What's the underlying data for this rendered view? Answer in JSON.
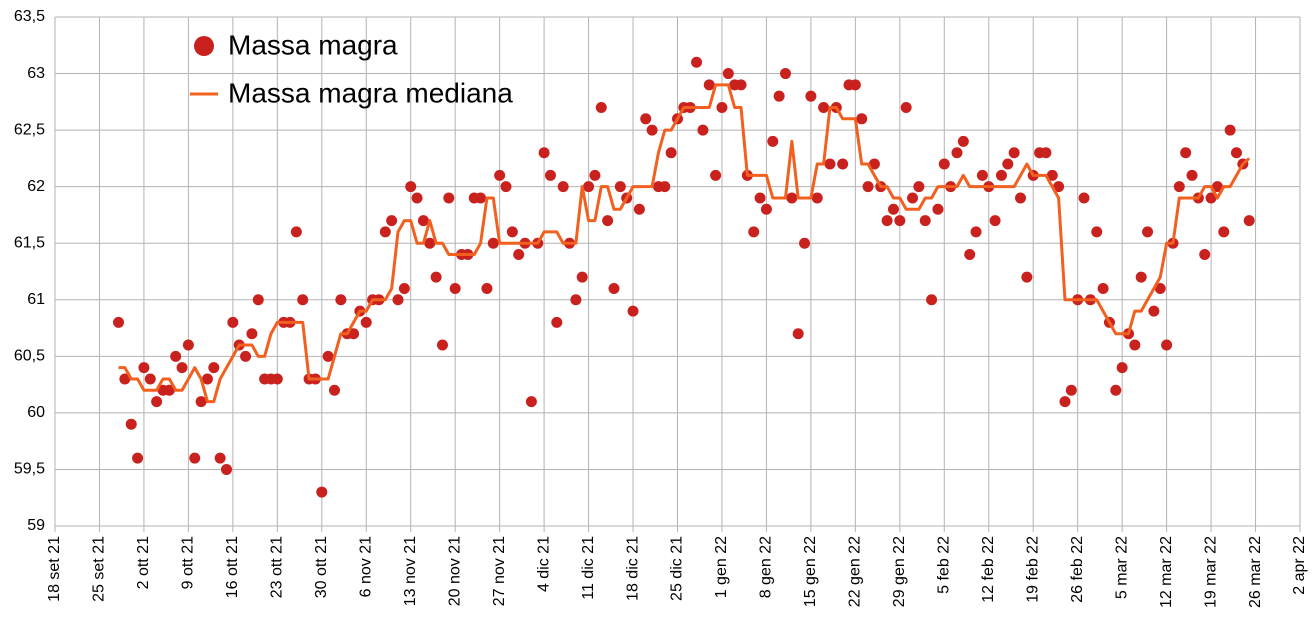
{
  "chart_data": {
    "type": "scatter",
    "x": [
      "2021-09-28",
      "2021-09-29",
      "2021-09-30",
      "2021-10-01",
      "2021-10-02",
      "2021-10-03",
      "2021-10-04",
      "2021-10-05",
      "2021-10-06",
      "2021-10-07",
      "2021-10-08",
      "2021-10-09",
      "2021-10-10",
      "2021-10-11",
      "2021-10-12",
      "2021-10-13",
      "2021-10-14",
      "2021-10-15",
      "2021-10-16",
      "2021-10-17",
      "2021-10-18",
      "2021-10-19",
      "2021-10-20",
      "2021-10-21",
      "2021-10-22",
      "2021-10-23",
      "2021-10-24",
      "2021-10-25",
      "2021-10-26",
      "2021-10-27",
      "2021-10-28",
      "2021-10-29",
      "2021-10-30",
      "2021-10-31",
      "2021-11-01",
      "2021-11-02",
      "2021-11-03",
      "2021-11-04",
      "2021-11-05",
      "2021-11-06",
      "2021-11-07",
      "2021-11-08",
      "2021-11-09",
      "2021-11-10",
      "2021-11-11",
      "2021-11-12",
      "2021-11-13",
      "2021-11-14",
      "2021-11-15",
      "2021-11-16",
      "2021-11-17",
      "2021-11-18",
      "2021-11-19",
      "2021-11-20",
      "2021-11-21",
      "2021-11-22",
      "2021-11-23",
      "2021-11-24",
      "2021-11-25",
      "2021-11-26",
      "2021-11-27",
      "2021-11-28",
      "2021-11-29",
      "2021-11-30",
      "2021-12-01",
      "2021-12-02",
      "2021-12-03",
      "2021-12-04",
      "2021-12-05",
      "2021-12-06",
      "2021-12-07",
      "2021-12-08",
      "2021-12-09",
      "2021-12-10",
      "2021-12-11",
      "2021-12-12",
      "2021-12-13",
      "2021-12-14",
      "2021-12-15",
      "2021-12-16",
      "2021-12-17",
      "2021-12-18",
      "2021-12-19",
      "2021-12-20",
      "2021-12-21",
      "2021-12-22",
      "2021-12-23",
      "2021-12-24",
      "2021-12-25",
      "2021-12-26",
      "2021-12-27",
      "2021-12-28",
      "2021-12-29",
      "2021-12-30",
      "2021-12-31",
      "2022-01-01",
      "2022-01-02",
      "2022-01-03",
      "2022-01-04",
      "2022-01-05",
      "2022-01-06",
      "2022-01-07",
      "2022-01-08",
      "2022-01-09",
      "2022-01-10",
      "2022-01-11",
      "2022-01-12",
      "2022-01-13",
      "2022-01-14",
      "2022-01-15",
      "2022-01-16",
      "2022-01-17",
      "2022-01-18",
      "2022-01-19",
      "2022-01-20",
      "2022-01-21",
      "2022-01-22",
      "2022-01-23",
      "2022-01-24",
      "2022-01-25",
      "2022-01-26",
      "2022-01-27",
      "2022-01-28",
      "2022-01-29",
      "2022-01-30",
      "2022-01-31",
      "2022-02-01",
      "2022-02-02",
      "2022-02-03",
      "2022-02-04",
      "2022-02-05",
      "2022-02-06",
      "2022-02-07",
      "2022-02-08",
      "2022-02-09",
      "2022-02-10",
      "2022-02-11",
      "2022-02-12",
      "2022-02-13",
      "2022-02-14",
      "2022-02-15",
      "2022-02-16",
      "2022-02-17",
      "2022-02-18",
      "2022-02-19",
      "2022-02-20",
      "2022-02-21",
      "2022-02-22",
      "2022-02-23",
      "2022-02-24",
      "2022-02-25",
      "2022-02-26",
      "2022-02-27",
      "2022-02-28",
      "2022-03-01",
      "2022-03-02",
      "2022-03-03",
      "2022-03-04",
      "2022-03-05",
      "2022-03-06",
      "2022-03-07",
      "2022-03-08",
      "2022-03-09",
      "2022-03-10",
      "2022-03-11",
      "2022-03-12",
      "2022-03-13",
      "2022-03-14",
      "2022-03-15",
      "2022-03-16",
      "2022-03-17",
      "2022-03-18",
      "2022-03-19",
      "2022-03-20",
      "2022-03-21",
      "2022-03-22",
      "2022-03-23",
      "2022-03-24",
      "2022-03-25"
    ],
    "series": [
      {
        "name": "Massa magra",
        "type": "scatter",
        "color": "#c9211e",
        "values": [
          60.8,
          60.3,
          59.9,
          59.6,
          60.4,
          60.3,
          60.1,
          60.2,
          60.2,
          60.5,
          60.4,
          60.6,
          59.6,
          60.1,
          60.3,
          60.4,
          59.6,
          59.5,
          60.8,
          60.6,
          60.5,
          60.7,
          61.0,
          60.3,
          60.3,
          60.3,
          60.8,
          60.8,
          61.6,
          61.0,
          60.3,
          60.3,
          59.3,
          60.5,
          60.2,
          61.0,
          60.7,
          60.7,
          60.9,
          60.8,
          61.0,
          61.0,
          61.6,
          61.7,
          61.0,
          61.1,
          62.0,
          61.9,
          61.7,
          61.5,
          61.2,
          60.6,
          61.9,
          61.1,
          61.4,
          61.4,
          61.9,
          61.9,
          61.1,
          61.5,
          62.1,
          62.0,
          61.6,
          61.4,
          61.5,
          60.1,
          61.5,
          62.3,
          62.1,
          60.8,
          62.0,
          61.5,
          61.0,
          61.2,
          62.0,
          62.1,
          62.7,
          61.7,
          61.1,
          62.0,
          61.9,
          60.9,
          61.8,
          62.6,
          62.5,
          62.0,
          62.0,
          62.3,
          62.6,
          62.7,
          62.7,
          63.1,
          62.5,
          62.9,
          62.1,
          62.7,
          63.0,
          62.9,
          62.9,
          62.1,
          61.6,
          61.9,
          61.8,
          62.4,
          62.8,
          63.0,
          61.9,
          60.7,
          61.5,
          62.8,
          61.9,
          62.7,
          62.2,
          62.7,
          62.2,
          62.9,
          62.9,
          62.6,
          62.0,
          62.2,
          62.0,
          61.7,
          61.8,
          61.7,
          62.7,
          61.9,
          62.0,
          61.7,
          61.0,
          61.8,
          62.2,
          62.0,
          62.3,
          62.4,
          61.4,
          61.6,
          62.1,
          62.0,
          61.7,
          62.1,
          62.2,
          62.3,
          61.9,
          61.2,
          62.1,
          62.3,
          62.3,
          62.1,
          62.0,
          60.1,
          60.2,
          61.0,
          61.9,
          61.0,
          61.6,
          61.1,
          60.8,
          60.2,
          60.4,
          60.7,
          60.6,
          61.2,
          61.6,
          60.9,
          61.1,
          60.6,
          61.5,
          62.0,
          62.3,
          62.1,
          61.9,
          61.4,
          61.9,
          62.0,
          61.6,
          62.5,
          62.3,
          62.2,
          61.7
        ]
      },
      {
        "name": "Massa magra mediana",
        "type": "line",
        "color": "#f2601f",
        "values": [
          60.4,
          60.4,
          60.3,
          60.3,
          60.2,
          60.2,
          60.2,
          60.3,
          60.3,
          60.2,
          60.2,
          60.3,
          60.4,
          60.3,
          60.1,
          60.1,
          60.3,
          60.4,
          60.5,
          60.6,
          60.6,
          60.6,
          60.5,
          60.5,
          60.7,
          60.8,
          60.8,
          60.8,
          60.8,
          60.8,
          60.3,
          60.3,
          60.3,
          60.3,
          60.5,
          60.7,
          60.7,
          60.8,
          60.9,
          60.9,
          61.0,
          61.0,
          61.0,
          61.1,
          61.6,
          61.7,
          61.7,
          61.5,
          61.5,
          61.7,
          61.5,
          61.5,
          61.4,
          61.4,
          61.4,
          61.4,
          61.4,
          61.5,
          61.9,
          61.9,
          61.5,
          61.5,
          61.5,
          61.5,
          61.5,
          61.5,
          61.5,
          61.6,
          61.6,
          61.6,
          61.5,
          61.5,
          61.5,
          62.0,
          61.7,
          61.7,
          62.0,
          62.0,
          61.8,
          61.8,
          61.9,
          62.0,
          62.0,
          62.0,
          62.0,
          62.3,
          62.5,
          62.5,
          62.6,
          62.7,
          62.7,
          62.7,
          62.7,
          62.7,
          62.9,
          62.9,
          62.9,
          62.7,
          62.7,
          62.1,
          62.1,
          62.1,
          62.1,
          61.9,
          61.9,
          61.9,
          62.4,
          61.9,
          61.9,
          61.9,
          62.2,
          62.2,
          62.7,
          62.7,
          62.6,
          62.6,
          62.6,
          62.2,
          62.2,
          62.1,
          62.0,
          62.0,
          61.9,
          61.9,
          61.8,
          61.8,
          61.8,
          61.9,
          61.9,
          62.0,
          62.0,
          62.0,
          62.0,
          62.1,
          62.0,
          62.0,
          62.0,
          62.0,
          62.0,
          62.0,
          62.0,
          62.0,
          62.1,
          62.2,
          62.1,
          62.1,
          62.1,
          62.0,
          61.9,
          61.0,
          61.0,
          61.0,
          61.0,
          61.0,
          61.0,
          60.9,
          60.8,
          60.7,
          60.7,
          60.7,
          60.9,
          60.9,
          61.0,
          61.1,
          61.2,
          61.5,
          61.5,
          61.9,
          61.9,
          61.9,
          61.9,
          62.0,
          62.0,
          61.9,
          62.0,
          62.0,
          62.1,
          62.2,
          62.25
        ]
      }
    ],
    "xlim": [
      "2021-09-18",
      "2022-04-02"
    ],
    "xticks": [
      {
        "value": "2021-09-18",
        "label": "18 set 21"
      },
      {
        "value": "2021-09-25",
        "label": "25 set 21"
      },
      {
        "value": "2021-10-02",
        "label": "2 ott 21"
      },
      {
        "value": "2021-10-09",
        "label": "9 ott 21"
      },
      {
        "value": "2021-10-16",
        "label": "16 ott 21"
      },
      {
        "value": "2021-10-23",
        "label": "23 ott 21"
      },
      {
        "value": "2021-10-30",
        "label": "30 ott 21"
      },
      {
        "value": "2021-11-06",
        "label": "6 nov 21"
      },
      {
        "value": "2021-11-13",
        "label": "13 nov 21"
      },
      {
        "value": "2021-11-20",
        "label": "20 nov 21"
      },
      {
        "value": "2021-11-27",
        "label": "27 nov 21"
      },
      {
        "value": "2021-12-04",
        "label": "4 dic 21"
      },
      {
        "value": "2021-12-11",
        "label": "11 dic 21"
      },
      {
        "value": "2021-12-18",
        "label": "18 dic 21"
      },
      {
        "value": "2021-12-25",
        "label": "25 dic 21"
      },
      {
        "value": "2022-01-01",
        "label": "1 gen 22"
      },
      {
        "value": "2022-01-08",
        "label": "8 gen 22"
      },
      {
        "value": "2022-01-15",
        "label": "15 gen 22"
      },
      {
        "value": "2022-01-22",
        "label": "22 gen 22"
      },
      {
        "value": "2022-01-29",
        "label": "29 gen 22"
      },
      {
        "value": "2022-02-05",
        "label": "5 feb 22"
      },
      {
        "value": "2022-02-12",
        "label": "12 feb 22"
      },
      {
        "value": "2022-02-19",
        "label": "19 feb 22"
      },
      {
        "value": "2022-02-26",
        "label": "26 feb 22"
      },
      {
        "value": "2022-03-05",
        "label": "5 mar 22"
      },
      {
        "value": "2022-03-12",
        "label": "12 mar 22"
      },
      {
        "value": "2022-03-19",
        "label": "19 mar 22"
      },
      {
        "value": "2022-03-26",
        "label": "26 mar 22"
      },
      {
        "value": "2022-04-02",
        "label": "2 apr 22"
      }
    ],
    "ylim": [
      59,
      63.5
    ],
    "yticks": [
      59,
      {
        "value": 59.5,
        "label": "59,5"
      },
      60,
      {
        "value": 60.5,
        "label": "60,5"
      },
      61,
      {
        "value": 61.5,
        "label": "61,5"
      },
      62,
      {
        "value": 62.5,
        "label": "62,5"
      },
      63,
      {
        "value": 63.5,
        "label": "63,5"
      }
    ],
    "grid": true,
    "legend": "top-left"
  }
}
